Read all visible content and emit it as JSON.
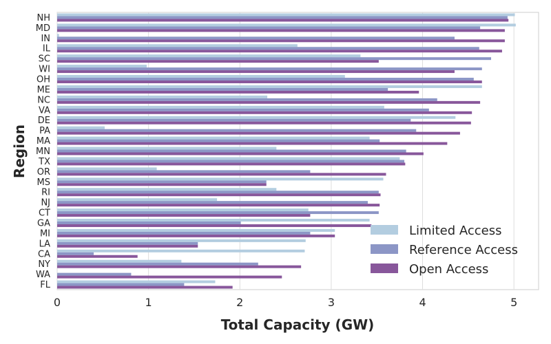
{
  "chart_data": {
    "type": "bar",
    "orientation": "horizontal",
    "title": "",
    "xlabel": "Total Capacity (GW)",
    "ylabel": "Region",
    "xlim": [
      0,
      5.27
    ],
    "xticks": [
      "0",
      "1",
      "2",
      "3",
      "4",
      "5"
    ],
    "grid": true,
    "legend_position": "lower-right",
    "categories": [
      "NH",
      "MD",
      "IN",
      "IL",
      "SC",
      "WI",
      "OH",
      "ME",
      "NC",
      "VA",
      "DE",
      "PA",
      "MA",
      "MN",
      "TX",
      "OR",
      "MS",
      "RI",
      "NJ",
      "CT",
      "GA",
      "MI",
      "LA",
      "CA",
      "NY",
      "WA",
      "FL"
    ],
    "series": [
      {
        "name": "Limited Access",
        "color": "#b3cde0",
        "values": [
          5.01,
          5.02,
          0.02,
          2.63,
          3.32,
          0.98,
          3.15,
          4.65,
          2.3,
          3.58,
          4.36,
          0.52,
          3.42,
          2.4,
          3.75,
          1.09,
          3.57,
          2.4,
          1.75,
          2.75,
          3.42,
          3.04,
          2.72,
          2.71,
          1.36,
          0.0,
          1.73
        ]
      },
      {
        "name": "Reference Access",
        "color": "#8c96c6",
        "values": [
          4.93,
          4.63,
          4.35,
          4.62,
          4.75,
          4.65,
          4.56,
          3.62,
          4.16,
          4.07,
          3.87,
          3.93,
          3.53,
          3.82,
          3.8,
          2.77,
          2.29,
          3.52,
          3.4,
          3.52,
          2.01,
          2.77,
          1.54,
          0.4,
          2.2,
          0.81,
          1.39
        ]
      },
      {
        "name": "Open Access",
        "color": "#88579b",
        "values": [
          4.94,
          4.9,
          4.9,
          4.87,
          3.52,
          4.35,
          4.65,
          3.96,
          4.63,
          4.54,
          4.53,
          4.41,
          4.27,
          4.01,
          3.81,
          3.6,
          2.29,
          3.54,
          3.53,
          2.77,
          3.44,
          3.04,
          1.54,
          0.88,
          2.67,
          2.46,
          1.92
        ]
      }
    ]
  }
}
